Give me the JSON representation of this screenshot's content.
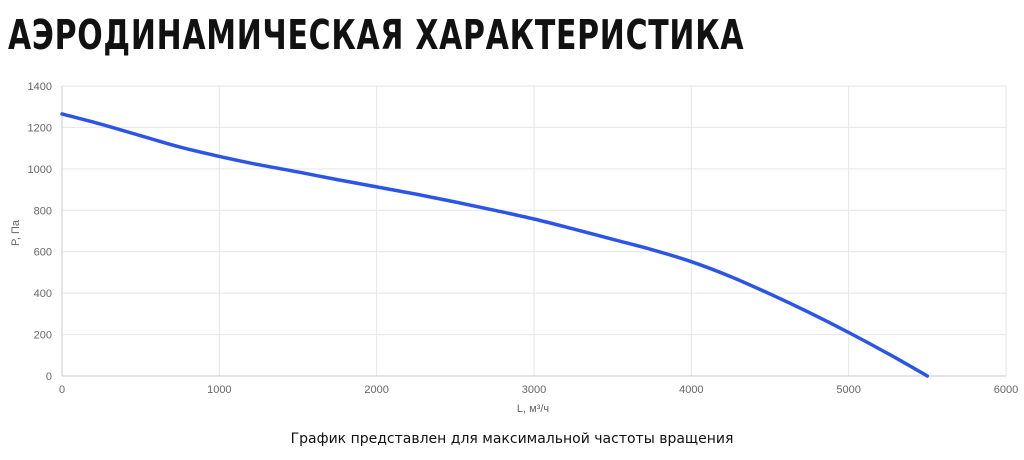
{
  "page": {
    "title": "АЭРОДИНАМИЧЕСКАЯ ХАРАКТЕРИСТИКА",
    "footnote": "График представлен для максимальной частоты вращения"
  },
  "colors": {
    "series": "#2b55e6",
    "grid": "#e6e6e6",
    "text": "#111111",
    "tick_text": "#666666"
  },
  "chart_data": {
    "type": "line",
    "title": "",
    "xlabel": "L, м³/ч",
    "ylabel": "P, Па",
    "xlim": [
      0,
      6000
    ],
    "ylim": [
      0,
      1400
    ],
    "xticks": [
      0,
      1000,
      2000,
      3000,
      4000,
      5000,
      6000
    ],
    "yticks": [
      0,
      200,
      400,
      600,
      800,
      1000,
      1200,
      1400
    ],
    "grid": true,
    "legend": "none",
    "series": [
      {
        "color": "#2b55e6",
        "x": [
          0,
          250,
          500,
          750,
          1000,
          1250,
          1500,
          1750,
          2000,
          2250,
          2500,
          2750,
          3000,
          3250,
          3500,
          3750,
          4000,
          4250,
          4500,
          4750,
          5000,
          5250,
          5500
        ],
        "y": [
          1265,
          1215,
          1160,
          1105,
          1060,
          1020,
          985,
          948,
          913,
          878,
          840,
          800,
          758,
          710,
          660,
          610,
          552,
          480,
          396,
          306,
          210,
          108,
          0
        ]
      }
    ]
  }
}
